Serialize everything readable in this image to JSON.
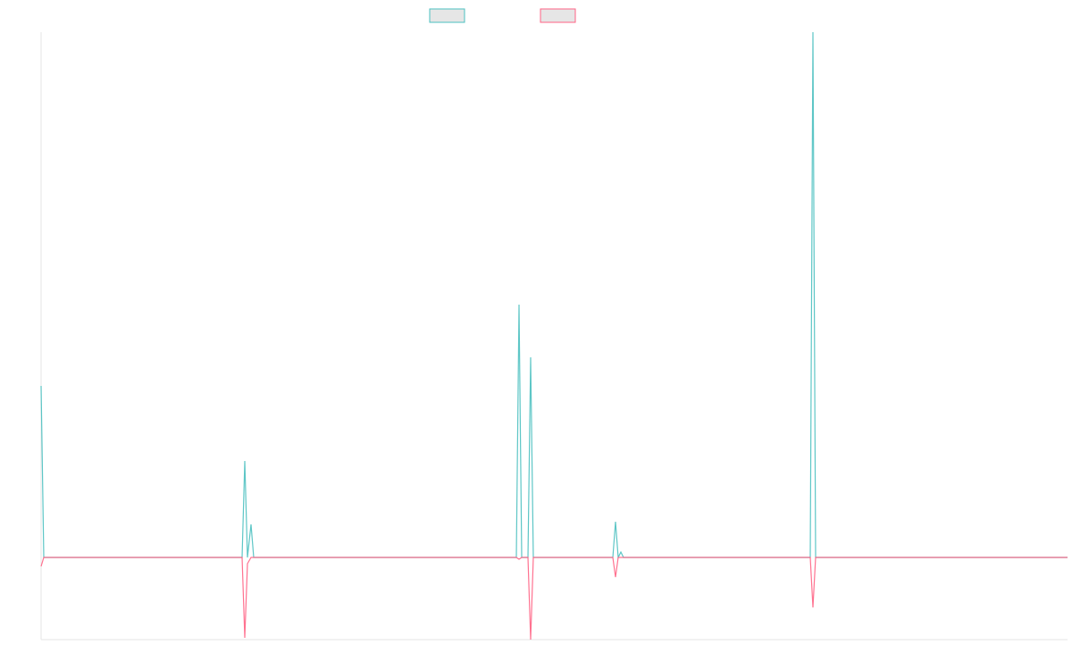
{
  "chart_data": {
    "type": "line",
    "x": [
      0,
      3,
      225,
      228,
      231,
      235,
      238,
      532,
      535,
      538,
      545,
      548,
      551,
      640,
      643,
      646,
      649,
      652,
      861,
      864,
      867,
      1149
    ],
    "series": [
      {
        "color": "#4bc0c0",
        "values": [
          192,
          0,
          0,
          108,
          0,
          37,
          0,
          0,
          283,
          0,
          0,
          224,
          0,
          0,
          40,
          0,
          6,
          0,
          0,
          588,
          0,
          0
        ]
      },
      {
        "color": "#ff6384",
        "values": [
          -10,
          0,
          0,
          -90,
          -7,
          0,
          0,
          0,
          -2,
          0,
          0,
          -92,
          0,
          0,
          -22,
          0,
          0,
          0,
          0,
          -56,
          0,
          0
        ]
      }
    ],
    "xlim": [
      0,
      1149
    ],
    "ylim": [
      -92,
      588
    ]
  }
}
